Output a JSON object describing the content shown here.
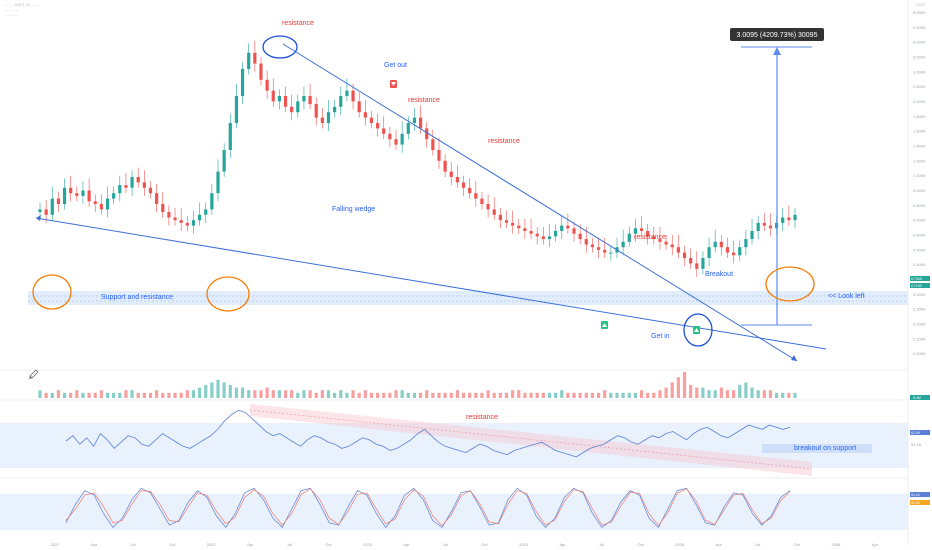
{
  "header": {
    "pair_line": "...........USDT, 1D ..........",
    "sub_line_1": "..............",
    "sub_line_2": "..............",
    "currency": "USDT"
  },
  "colors": {
    "up": "#26a69a",
    "down": "#ef5350",
    "trendline": "#3b6fd8",
    "annotation_red": "#e53935",
    "annotation_blue": "#2962ff",
    "circle_orange": "#f57c00",
    "zone_blue": "#dbe8fb",
    "rsi_line": "#5b7fd6",
    "stoch_k": "#5b7fd6",
    "stoch_d": "#ef7b6f"
  },
  "annotations": {
    "resistance_1": "resistance",
    "resistance_2": "resistance",
    "resistance_3": "resistance",
    "resistance_4": "resistance",
    "resistance_rsi": "resistance",
    "get_out": "Get out",
    "get_in": "Get in",
    "falling_wedge": "Falling wedge",
    "support_resistance": "Support and resistance",
    "breakout": "Breakout",
    "look_left": "<< Look left",
    "breakout_on_support": "breakout on support",
    "measure_box": "3.0095 (4209.73%) 30095"
  },
  "icons": {
    "sell_marker": "down-arrow-icon",
    "buy_marker": "up-arrow-icon",
    "draw_tool": "pencil-icon"
  },
  "chart_data": [
    {
      "type": "candlestick",
      "title": "",
      "xlabel": "",
      "ylabel": "",
      "note": "Price series estimated from image; y in relative price units 0-100",
      "ylim": [
        0,
        100
      ],
      "close_path": [
        38,
        36,
        42,
        40,
        46,
        44,
        43,
        45,
        41,
        40,
        38,
        42,
        44,
        47,
        46,
        50,
        48,
        46,
        44,
        40,
        37,
        35,
        34,
        33,
        32,
        34,
        36,
        38,
        44,
        52,
        60,
        70,
        80,
        90,
        96,
        92,
        86,
        82,
        78,
        80,
        76,
        74,
        78,
        80,
        77,
        72,
        70,
        74,
        76,
        80,
        82,
        78,
        74,
        72,
        70,
        68,
        66,
        64,
        62,
        66,
        70,
        72,
        68,
        64,
        60,
        56,
        52,
        50,
        48,
        46,
        44,
        42,
        40,
        38,
        36,
        34,
        33,
        32,
        31,
        30,
        29,
        28,
        27,
        28,
        30,
        32,
        31,
        29,
        27,
        25,
        24,
        23,
        22,
        22,
        24,
        26,
        29,
        31,
        30,
        28,
        27,
        26,
        25,
        24,
        22,
        20,
        18,
        16,
        20,
        24,
        26,
        24,
        22,
        21,
        24,
        27,
        30,
        33,
        32,
        31,
        33,
        35,
        34,
        36
      ],
      "volume_path": [
        3,
        2,
        2,
        3,
        2,
        2,
        3,
        2,
        2,
        2,
        3,
        2,
        2,
        2,
        3,
        3,
        2,
        2,
        2,
        3,
        2,
        2,
        2,
        2,
        3,
        3,
        4,
        5,
        6,
        7,
        6,
        5,
        4,
        4,
        3,
        3,
        3,
        4,
        3,
        3,
        3,
        3,
        2,
        3,
        3,
        2,
        3,
        3,
        2,
        3,
        2,
        3,
        2,
        3,
        2,
        2,
        2,
        2,
        3,
        3,
        2,
        2,
        2,
        3,
        2,
        2,
        2,
        2,
        3,
        2,
        2,
        2,
        2,
        3,
        2,
        2,
        2,
        3,
        3,
        2,
        2,
        2,
        2,
        2,
        2,
        3,
        2,
        2,
        2,
        2,
        2,
        2,
        3,
        2,
        2,
        2,
        2,
        2,
        3,
        2,
        2,
        3,
        4,
        6,
        8,
        10,
        5,
        4,
        4,
        3,
        3,
        4,
        3,
        3,
        5,
        6,
        4,
        3,
        3,
        3,
        2,
        2,
        2,
        2
      ],
      "series": [
        {
          "name": "",
          "role": "OHLC"
        }
      ]
    },
    {
      "type": "line",
      "title": "",
      "xlabel": "",
      "ylabel": "",
      "note": "RSI estimated, range 0-100",
      "ylim": [
        20,
        90
      ],
      "series": [
        {
          "name": "",
          "values": [
            55,
            60,
            52,
            58,
            50,
            62,
            56,
            48,
            54,
            60,
            58,
            52,
            50,
            56,
            62,
            58,
            54,
            50,
            48,
            52,
            56,
            60,
            66,
            74,
            80,
            84,
            82,
            76,
            70,
            64,
            60,
            62,
            58,
            54,
            50,
            56,
            60,
            58,
            54,
            52,
            48,
            50,
            54,
            58,
            56,
            52,
            50,
            46,
            48,
            52,
            56,
            62,
            66,
            60,
            54,
            50,
            48,
            46,
            44,
            48,
            52,
            50,
            46,
            44,
            42,
            46,
            48,
            50,
            52,
            54,
            50,
            46,
            44,
            42,
            40,
            44,
            48,
            50,
            52,
            56,
            60,
            58,
            54,
            52,
            56,
            60,
            58,
            62,
            64,
            60,
            56,
            62,
            66,
            68,
            64,
            60,
            58,
            62,
            66,
            70,
            68,
            66,
            70,
            68,
            66,
            68
          ]
        }
      ],
      "value_labels": [
        "62.09",
        "51.16"
      ]
    },
    {
      "type": "line",
      "title": "",
      "xlabel": "",
      "ylabel": "",
      "note": "Stochastic RSI estimated, range 0-100",
      "ylim": [
        0,
        100
      ],
      "series": [
        {
          "name": "",
          "values": [
            20,
            60,
            90,
            80,
            40,
            10,
            30,
            70,
            95,
            85,
            50,
            15,
            25,
            65,
            90,
            75,
            35,
            10,
            40,
            85,
            95,
            70,
            30,
            10,
            50,
            90,
            95,
            60,
            20,
            15,
            55,
            90,
            80,
            40,
            10,
            35,
            80,
            95,
            70,
            25,
            10,
            45,
            85,
            90,
            55,
            15,
            20,
            70,
            95,
            80,
            35,
            10,
            30,
            75,
            95,
            85,
            40,
            10,
            25,
            65,
            90,
            80,
            30,
            10,
            50,
            90,
            95,
            60,
            20,
            15,
            55,
            85,
            80,
            40,
            15,
            35,
            75,
            90
          ]
        },
        {
          "name": "",
          "values": [
            25,
            50,
            80,
            85,
            55,
            20,
            25,
            60,
            90,
            88,
            60,
            25,
            22,
            55,
            85,
            80,
            45,
            18,
            32,
            75,
            92,
            78,
            40,
            15,
            40,
            82,
            94,
            70,
            30,
            16,
            45,
            82,
            85,
            50,
            18,
            28,
            70,
            92,
            78,
            35,
            14,
            38,
            78,
            90,
            62,
            22,
            18,
            60,
            90,
            84,
            45,
            15,
            26,
            66,
            92,
            88,
            50,
            15,
            22,
            56,
            86,
            84,
            40,
            14,
            42,
            84,
            94,
            68,
            26,
            16,
            48,
            80,
            84,
            48,
            18,
            30,
            68,
            88
          ]
        }
      ],
      "value_labels": [
        "91.10",
        "81.03"
      ]
    }
  ],
  "right_axis": {
    "badges": [
      "0.7345",
      "0.7150"
    ],
    "volume_badge": "5.4M",
    "ticks": [
      "5.0000",
      "4.5000",
      "4.0000",
      "3.5000",
      "3.0000",
      "2.5000",
      "2.0000",
      "1.8000",
      "1.6000",
      "1.4000",
      "1.2000",
      "1.0000",
      "0.9000",
      "0.8000",
      "0.7000",
      "0.6000",
      "0.5000",
      "0.4000",
      "0.3500",
      "0.3000",
      "0.2500",
      "0.2000",
      "0.1500",
      "0.1000"
    ]
  },
  "time_axis": {
    "ticks": [
      "2021",
      "Apr",
      "Jul",
      "Oct",
      "2022",
      "Apr",
      "Jul",
      "Oct",
      "2023",
      "Apr",
      "Jul",
      "Oct",
      "2024",
      "Apr",
      "Jul",
      "Oct",
      "2025",
      "Apr",
      "Jul",
      "Oct",
      "2026",
      "Apr"
    ]
  }
}
